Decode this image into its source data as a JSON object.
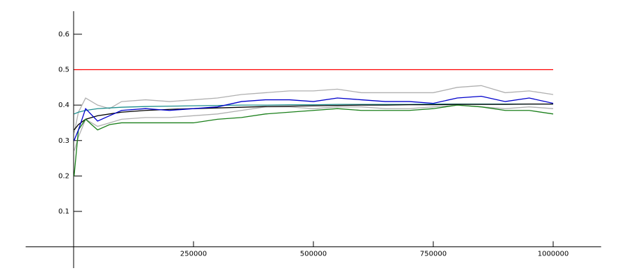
{
  "chart_data": {
    "type": "line",
    "x": [
      1000,
      10000,
      25000,
      50000,
      75000,
      100000,
      150000,
      200000,
      250000,
      300000,
      350000,
      400000,
      450000,
      500000,
      550000,
      600000,
      650000,
      700000,
      750000,
      800000,
      850000,
      900000,
      950000,
      1000000
    ],
    "series": [
      {
        "color": "#ff0000",
        "values": [
          0.5,
          0.5,
          0.5,
          0.5,
          0.5,
          0.5,
          0.5,
          0.5,
          0.5,
          0.5,
          0.5,
          0.5,
          0.5,
          0.5,
          0.5,
          0.5,
          0.5,
          0.5,
          0.5,
          0.5,
          0.5,
          0.5,
          0.5,
          0.5
        ]
      },
      {
        "color": "#b0b0b0",
        "values": [
          0.32,
          0.38,
          0.42,
          0.4,
          0.39,
          0.41,
          0.415,
          0.41,
          0.415,
          0.42,
          0.43,
          0.435,
          0.44,
          0.44,
          0.445,
          0.435,
          0.435,
          0.435,
          0.435,
          0.45,
          0.455,
          0.435,
          0.44,
          0.43
        ]
      },
      {
        "color": "#b0b0b0",
        "values": [
          0.27,
          0.31,
          0.36,
          0.34,
          0.35,
          0.36,
          0.365,
          0.365,
          0.37,
          0.375,
          0.385,
          0.395,
          0.395,
          0.39,
          0.395,
          0.395,
          0.39,
          0.39,
          0.395,
          0.4,
          0.395,
          0.39,
          0.395,
          0.39
        ]
      },
      {
        "color": "#1f8f8f",
        "values": [
          0.375,
          0.38,
          0.385,
          0.39,
          0.392,
          0.394,
          0.396,
          0.397,
          0.398,
          0.399,
          0.4,
          0.4,
          0.401,
          0.401,
          0.402,
          0.402,
          0.402,
          0.402,
          0.403,
          0.403,
          0.403,
          0.403,
          0.403,
          0.403
        ]
      },
      {
        "color": "#000000",
        "values": [
          0.33,
          0.345,
          0.36,
          0.37,
          0.375,
          0.38,
          0.385,
          0.388,
          0.39,
          0.392,
          0.394,
          0.396,
          0.397,
          0.398,
          0.399,
          0.4,
          0.4,
          0.401,
          0.401,
          0.402,
          0.402,
          0.402,
          0.403,
          0.403
        ]
      },
      {
        "color": "#1a7f1a",
        "values": [
          0.2,
          0.33,
          0.36,
          0.33,
          0.345,
          0.35,
          0.35,
          0.35,
          0.35,
          0.36,
          0.365,
          0.375,
          0.38,
          0.385,
          0.39,
          0.385,
          0.385,
          0.385,
          0.39,
          0.4,
          0.395,
          0.385,
          0.385,
          0.375
        ]
      },
      {
        "color": "#0000cc",
        "values": [
          0.3,
          0.33,
          0.39,
          0.355,
          0.37,
          0.385,
          0.39,
          0.385,
          0.39,
          0.395,
          0.41,
          0.415,
          0.415,
          0.41,
          0.42,
          0.415,
          0.41,
          0.41,
          0.405,
          0.42,
          0.425,
          0.41,
          0.42,
          0.405
        ]
      }
    ],
    "xlim": [
      -100000,
      1100000
    ],
    "xticks": [
      250000,
      500000,
      750000,
      1000000
    ],
    "ylim": [
      -0.06,
      0.665
    ],
    "yticks": [
      0.1,
      0.2,
      0.3,
      0.4,
      0.5,
      0.6
    ],
    "grid": false
  }
}
